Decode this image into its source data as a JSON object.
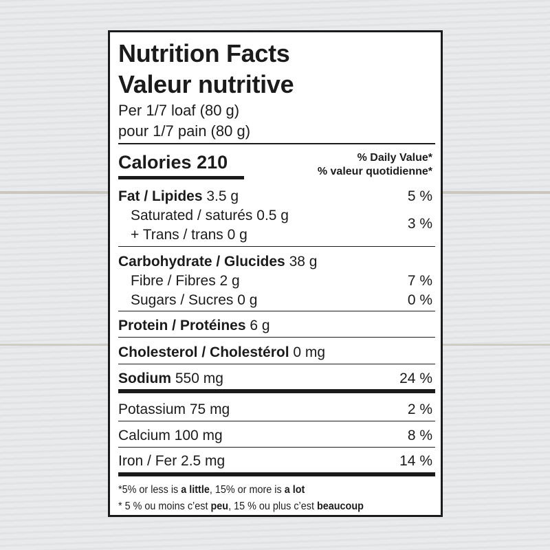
{
  "title_en": "Nutrition Facts",
  "title_fr": "Valeur nutritive",
  "serving_en": "Per 1/7 loaf (80 g)",
  "serving_fr": "pour 1/7 pain (80 g)",
  "calories": {
    "label": "Calories",
    "value": "210"
  },
  "dv_header_en": "% Daily Value*",
  "dv_header_fr": "% valeur quotidienne*",
  "nutrients": {
    "fat": {
      "label": "Fat / Lipides",
      "amount": "3.5 g",
      "dv": "5 %"
    },
    "saturated": {
      "label": "Saturated / saturés 0.5 g"
    },
    "trans": {
      "label": "+ Trans / trans 0 g",
      "dv": "3 %"
    },
    "carb": {
      "label": "Carbohydrate / Glucides",
      "amount": "38 g"
    },
    "fibre": {
      "label": "Fibre / Fibres 2 g",
      "dv": "7 %"
    },
    "sugars": {
      "label": "Sugars / Sucres 0 g",
      "dv": "0 %"
    },
    "protein": {
      "label": "Protein / Protéines",
      "amount": "6 g"
    },
    "cholesterol": {
      "label": "Cholesterol / Cholestérol",
      "amount": "0 mg"
    },
    "sodium": {
      "label": "Sodium",
      "amount": "550 mg",
      "dv": "24 %"
    },
    "potassium": {
      "label": "Potassium 75 mg",
      "dv": "2 %"
    },
    "calcium": {
      "label": "Calcium 100 mg",
      "dv": "8 %"
    },
    "iron": {
      "label": "Iron / Fer 2.5 mg",
      "dv": "14 %"
    }
  },
  "footnote_en": {
    "a": "*5% or less is ",
    "b": "a little",
    "c": ", 15% or more is ",
    "d": "a lot"
  },
  "footnote_fr": {
    "a": "* 5 % ou moins c’est ",
    "b": "peu",
    "c": ", 15 % ou plus c’est ",
    "d": "beaucoup"
  }
}
